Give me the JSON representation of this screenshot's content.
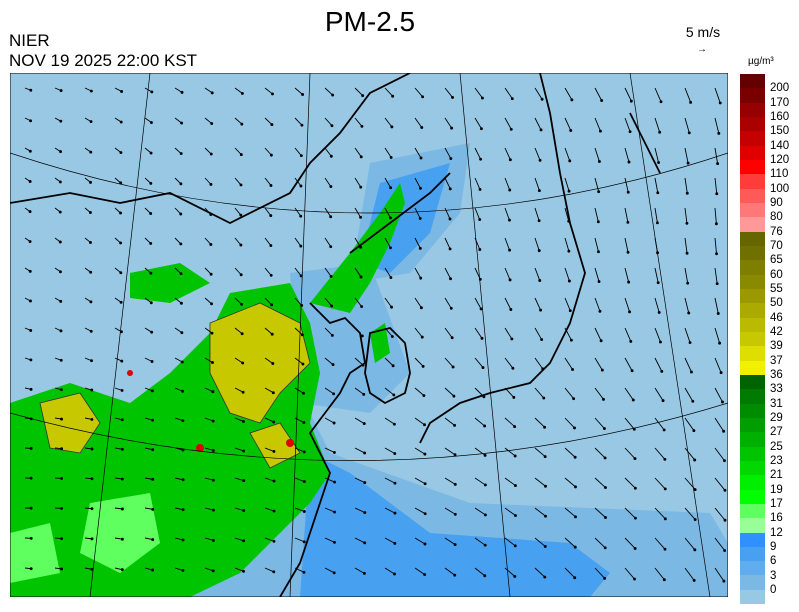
{
  "header": {
    "title": "PM-2.5",
    "agency": "NIER",
    "timestamp": "NOV 19 2025 22:00 KST"
  },
  "wind_key": {
    "label": "5 m/s",
    "icon": "wind-vector-arrow-icon"
  },
  "legend": {
    "unit": "µg/m³",
    "labels": [
      "200",
      "170",
      "160",
      "150",
      "140",
      "120",
      "110",
      "100",
      "90",
      "80",
      "76",
      "70",
      "65",
      "60",
      "55",
      "50",
      "46",
      "42",
      "39",
      "37",
      "36",
      "33",
      "31",
      "29",
      "27",
      "25",
      "23",
      "21",
      "19",
      "17",
      "16",
      "12",
      "9",
      "6",
      "3",
      "0"
    ],
    "colors": [
      "#650000",
      "#7a0000",
      "#960000",
      "#aa0000",
      "#c40000",
      "#e00000",
      "#ff0000",
      "#ff3c3c",
      "#ff5a5a",
      "#ff7878",
      "#ff9898",
      "#666600",
      "#707000",
      "#7e7e00",
      "#8a8a00",
      "#9a9a00",
      "#aaaa00",
      "#baba00",
      "#c8c800",
      "#dede00",
      "#f0f000",
      "#006400",
      "#007a00",
      "#008c00",
      "#009e00",
      "#00b000",
      "#00c400",
      "#00d800",
      "#00ee00",
      "#00ff00",
      "#60ff60",
      "#98ff98",
      "#3090ff",
      "#48a0f0",
      "#60acec",
      "#7cb8e4",
      "#98c8e4"
    ]
  },
  "map": {
    "background_color": "#98c8e4",
    "colors": {
      "low": "#7cb8e4",
      "mid": "#48a0f0",
      "green": "#00c400",
      "lightgreen": "#60ff60",
      "yellow": "#c8c800",
      "red": "#e00000"
    }
  }
}
